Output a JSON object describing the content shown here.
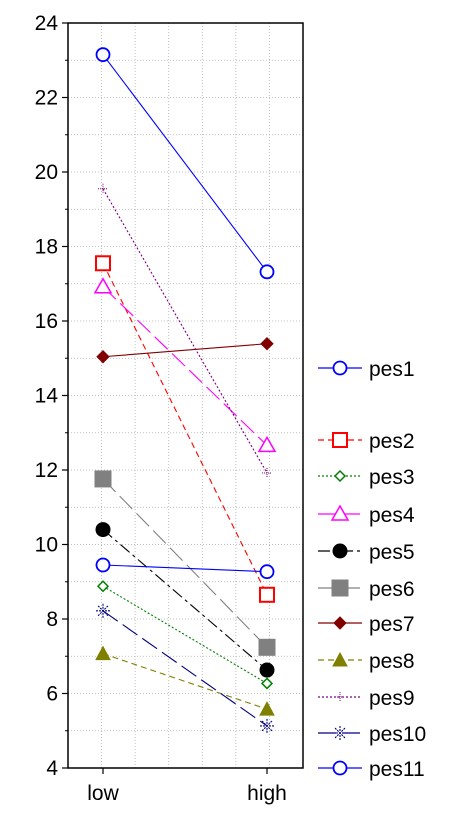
{
  "chart_data": {
    "type": "line",
    "title": "",
    "xlabel": "",
    "ylabel": "",
    "categories": [
      "low",
      "high"
    ],
    "ylim": [
      4,
      24
    ],
    "yticks": [
      "4",
      "6",
      "8",
      "10",
      "12",
      "14",
      "16",
      "18",
      "20",
      "22",
      "24"
    ],
    "grid": true,
    "legend_position": "right",
    "series": [
      {
        "name": "pes1",
        "values": [
          23.15,
          17.32
        ],
        "color": "#0000ff",
        "marker": "circle-open",
        "dash": "solid"
      },
      {
        "name": "pes2",
        "values": [
          17.55,
          8.65
        ],
        "color": "#ff0000",
        "marker": "square-open",
        "dash": "dashed"
      },
      {
        "name": "pes3",
        "values": [
          8.88,
          6.27
        ],
        "color": "#008000",
        "marker": "diamond-open",
        "dash": "dotted"
      },
      {
        "name": "pes4",
        "values": [
          16.92,
          12.66
        ],
        "color": "#ff00ff",
        "marker": "triangle-open",
        "dash": "longdash"
      },
      {
        "name": "pes5",
        "values": [
          10.4,
          6.63
        ],
        "color": "#000000",
        "marker": "circle-filled",
        "dash": "dashdot"
      },
      {
        "name": "pes6",
        "values": [
          11.76,
          7.24
        ],
        "color": "#808080",
        "marker": "square-filled",
        "dash": "longdash"
      },
      {
        "name": "pes7",
        "values": [
          15.04,
          15.39
        ],
        "color": "#800000",
        "marker": "diamond-filled",
        "dash": "solid"
      },
      {
        "name": "pes8",
        "values": [
          7.07,
          5.58
        ],
        "color": "#808000",
        "marker": "triangle-filled",
        "dash": "dashed"
      },
      {
        "name": "pes9",
        "values": [
          19.55,
          11.92
        ],
        "color": "#800080",
        "marker": "plus",
        "dash": "dotted"
      },
      {
        "name": "pes10",
        "values": [
          8.22,
          5.13
        ],
        "color": "#000080",
        "marker": "star",
        "dash": "longdash"
      },
      {
        "name": "pes11",
        "values": [
          9.45,
          9.27
        ],
        "color": "#0000ff",
        "marker": "circle-open",
        "dash": "solid"
      }
    ]
  }
}
